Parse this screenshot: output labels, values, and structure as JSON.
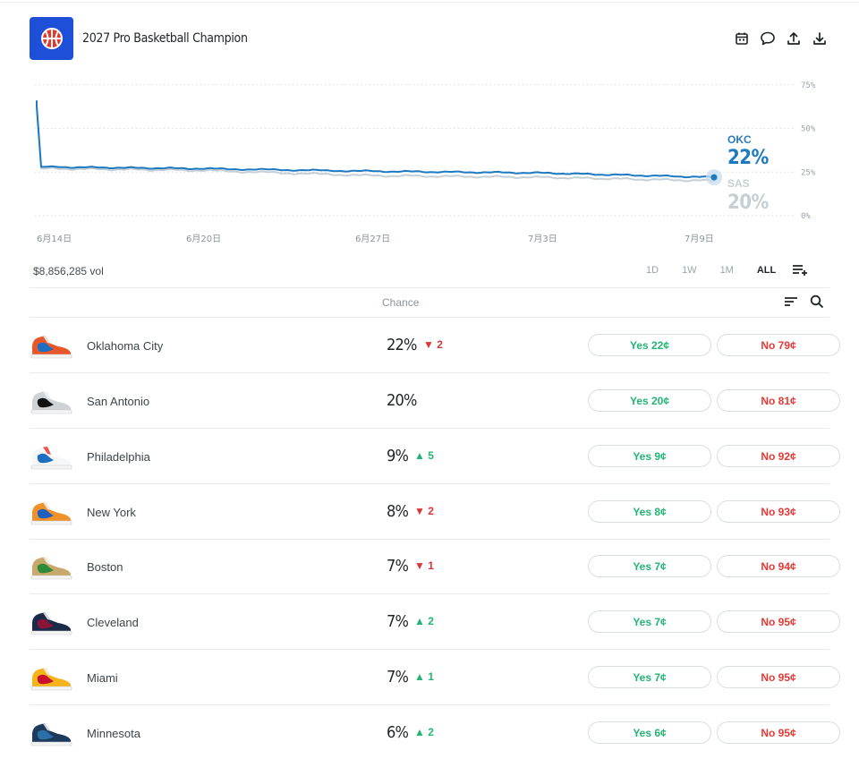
{
  "header": {
    "title": "2027 Pro Basketball Champion",
    "logo_icon": "basketball-icon",
    "actions": [
      "calendar-icon",
      "comment-icon",
      "share-icon",
      "download-icon"
    ]
  },
  "chart_data": {
    "type": "line",
    "y_ticks": [
      "75%",
      "50%",
      "25%",
      "0%"
    ],
    "ylim": [
      0,
      80
    ],
    "x_ticks": [
      "6月14日",
      "6月20日",
      "6月27日",
      "7月3日",
      "7月9日"
    ],
    "grid": true,
    "series": [
      {
        "name": "OKC",
        "color": "#1d79c0",
        "last_label": "22%",
        "x": [
          "6月14日",
          "6月15日",
          "6月20日",
          "6月27日",
          "7月3日",
          "7月9日"
        ],
        "values": [
          66,
          28,
          27,
          25.5,
          24.5,
          22
        ]
      },
      {
        "name": "SAS",
        "color": "#c5cfd6",
        "last_label": "20%",
        "x": [
          "6月14日",
          "6月15日",
          "6月20日",
          "6月27日",
          "7月3日",
          "7月9日"
        ],
        "values": [
          65,
          27,
          26,
          23,
          22,
          20
        ]
      }
    ]
  },
  "toolbar": {
    "volume": "$8,856,285 vol",
    "ranges": [
      "1D",
      "1W",
      "1M",
      "ALL"
    ],
    "active_range": "ALL"
  },
  "table": {
    "chance_header": "Chance",
    "rows": [
      {
        "team": "Oklahoma City",
        "chance": "22%",
        "change": "▼ 2",
        "dir": "down",
        "yes": "Yes 22¢",
        "no": "No 79¢",
        "colors": [
          "#e8572a",
          "#1e6fbf",
          "#f2f2f2"
        ]
      },
      {
        "team": "San Antonio",
        "chance": "20%",
        "change": "",
        "dir": "",
        "yes": "Yes 20¢",
        "no": "No 81¢",
        "colors": [
          "#cfd3d6",
          "#111111",
          "#f2f2f2"
        ]
      },
      {
        "team": "Philadelphia",
        "chance": "9%",
        "change": "▲ 5",
        "dir": "up",
        "yes": "Yes 9¢",
        "no": "No 92¢",
        "colors": [
          "#f4f6f8",
          "#1e6fbf",
          "#e23a3a"
        ]
      },
      {
        "team": "New York",
        "chance": "8%",
        "change": "▼ 2",
        "dir": "down",
        "yes": "Yes 8¢",
        "no": "No 93¢",
        "colors": [
          "#f0922b",
          "#1e5fbf",
          "#f2f2f2"
        ]
      },
      {
        "team": "Boston",
        "chance": "7%",
        "change": "▼ 1",
        "dir": "down",
        "yes": "Yes 7¢",
        "no": "No 94¢",
        "colors": [
          "#c9a96b",
          "#2e8b3a",
          "#f2f2f2"
        ]
      },
      {
        "team": "Cleveland",
        "chance": "7%",
        "change": "▲ 2",
        "dir": "up",
        "yes": "Yes 7¢",
        "no": "No 95¢",
        "colors": [
          "#1c2a4a",
          "#8a1538",
          "#f2f2f2"
        ]
      },
      {
        "team": "Miami",
        "chance": "7%",
        "change": "▲ 1",
        "dir": "up",
        "yes": "Yes 7¢",
        "no": "No 95¢",
        "colors": [
          "#f4b41a",
          "#c8102e",
          "#f2f2f2"
        ]
      },
      {
        "team": "Minnesota",
        "chance": "6%",
        "change": "▲ 2",
        "dir": "up",
        "yes": "Yes 6¢",
        "no": "No 95¢",
        "colors": [
          "#1b3a5c",
          "#2a6fa8",
          "#f2f2f2"
        ]
      }
    ]
  }
}
